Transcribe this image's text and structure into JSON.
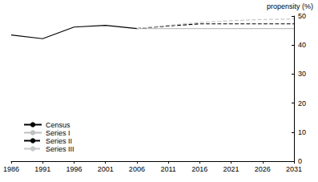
{
  "chart_data": {
    "type": "line",
    "y_label": "propensity (%)",
    "x": [
      1986,
      1991,
      1996,
      2001,
      2006,
      2011,
      2016,
      2021,
      2026,
      2031
    ],
    "xlim": [
      1986,
      2031
    ],
    "xticks": [
      1986,
      1991,
      1996,
      2001,
      2006,
      2011,
      2016,
      2021,
      2026,
      2031
    ],
    "ylim": [
      0,
      50
    ],
    "yticks": [
      0,
      10,
      20,
      30,
      40,
      50
    ],
    "grid": false,
    "legend": "lower left",
    "series": [
      {
        "name": "Census",
        "color": "#000000",
        "line_style": "solid",
        "values": [
          43.5,
          42.2,
          46.2,
          46.8,
          45.7,
          null,
          null,
          null,
          null,
          null
        ]
      },
      {
        "name": "Series I",
        "color": "#bfbfbf",
        "line_style": "solid",
        "values": [
          null,
          null,
          null,
          null,
          45.7,
          45.7,
          45.7,
          45.7,
          45.7,
          45.7
        ]
      },
      {
        "name": "Series II",
        "color": "#000000",
        "line_style": "dashed",
        "values": [
          null,
          null,
          null,
          null,
          45.7,
          46.6,
          47.3,
          47.3,
          47.3,
          47.3
        ]
      },
      {
        "name": "Series III",
        "color": "#c8c8c8",
        "line_style": "dashed",
        "values": [
          null,
          null,
          null,
          null,
          45.7,
          46.8,
          47.8,
          48.4,
          48.8,
          49.0
        ]
      }
    ]
  }
}
